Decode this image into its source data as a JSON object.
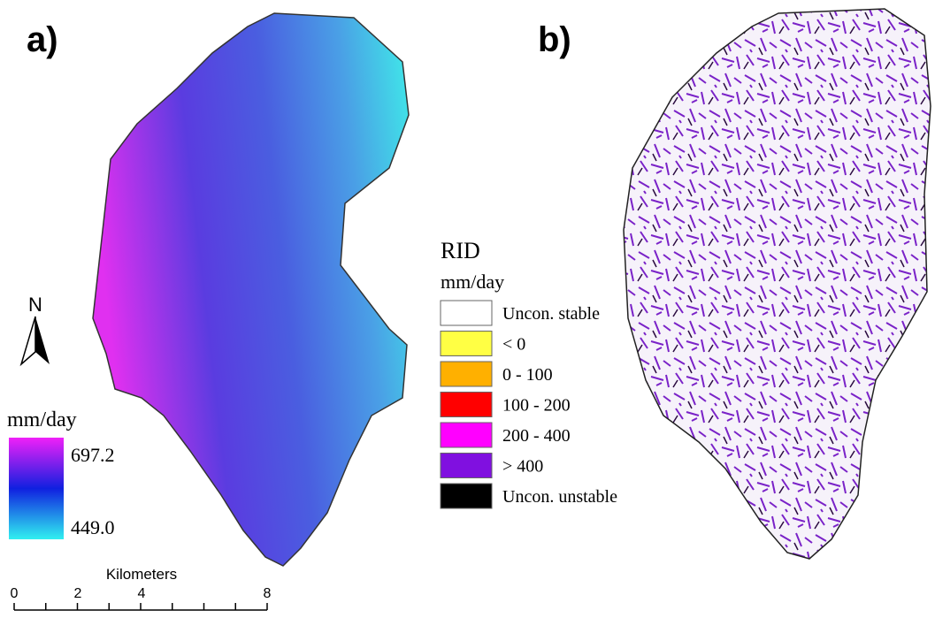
{
  "panel_a": {
    "label": "a)",
    "north": "N",
    "legend": {
      "title": "mm/day",
      "max": "697.2",
      "min": "449.0"
    },
    "scale_bar": {
      "title": "Kilometers",
      "ticks": [
        "0",
        "2",
        "4",
        "8"
      ]
    }
  },
  "panel_b": {
    "label": "b)",
    "legend": {
      "title": "RID",
      "unit": "mm/day",
      "items": [
        {
          "label": "Uncon. stable",
          "color": "#ffffff"
        },
        {
          "label": "< 0",
          "color": "#ffff44"
        },
        {
          "label": "0 - 100",
          "color": "#ffb000"
        },
        {
          "label": "100 - 200",
          "color": "#ff0000"
        },
        {
          "label": "200 - 400",
          "color": "#ff00ff"
        },
        {
          "label": "> 400",
          "color": "#8010e0"
        },
        {
          "label": "Uncon. unstable",
          "color": "#000000"
        }
      ]
    }
  }
}
